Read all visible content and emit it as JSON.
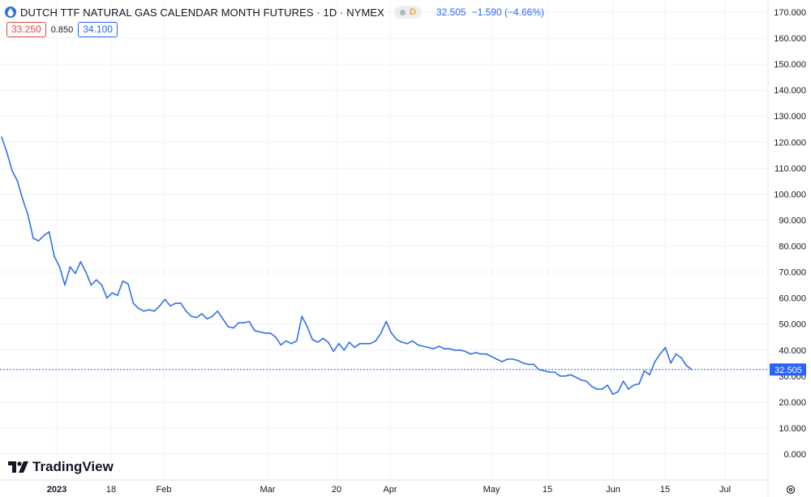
{
  "header": {
    "title": "DUTCH TTF NATURAL GAS CALENDAR MONTH FUTURES · 1D · NYMEX",
    "interval_badge": "D",
    "last_price": "32.505",
    "change": "−1.590 (−4.66%)"
  },
  "quotes": {
    "bid": "33.250",
    "spread": "0.850",
    "ask": "34.100"
  },
  "brand": {
    "name": "TradingView"
  },
  "price_label": "32.505",
  "colors": {
    "line": "#3370e8",
    "accent": "#2962ff",
    "bid": "#e0474a",
    "grid": "#f0f3fa"
  },
  "chart_data": {
    "type": "line",
    "title": "DUTCH TTF NATURAL GAS CALENDAR MONTH FUTURES · 1D · NYMEX",
    "ylim": [
      -5,
      175
    ],
    "y_ticks": [
      "170.000",
      "160.000",
      "150.000",
      "140.000",
      "130.000",
      "120.000",
      "110.000",
      "100.000",
      "90.000",
      "80.000",
      "70.000",
      "60.000",
      "50.000",
      "40.000",
      "30.000",
      "20.000",
      "10.000",
      "0.000"
    ],
    "x_ticks": [
      "2023",
      "18",
      "Feb",
      "Mar",
      "20",
      "Apr",
      "May",
      "15",
      "Jun",
      "15",
      "Jul"
    ],
    "last_value": 32.505,
    "series": [
      {
        "values": [
          122,
          116,
          109,
          105,
          98,
          92,
          83,
          82,
          84,
          85.5,
          76,
          72,
          65,
          72,
          69.5,
          74,
          70,
          65,
          67,
          65,
          60,
          62,
          61,
          66.5,
          65.5,
          58,
          56,
          55,
          55.5,
          55,
          57,
          59.5,
          57,
          58,
          58,
          55,
          53,
          52.5,
          54,
          52,
          53,
          55,
          52,
          49,
          48.5,
          50.5,
          50.5,
          51,
          47.5,
          47,
          46.5,
          46.5,
          45,
          42,
          43.5,
          42.5,
          43.5,
          53,
          49,
          44,
          43,
          44.5,
          43,
          39.5,
          42.5,
          40,
          43,
          41,
          42.5,
          42.5,
          42.5,
          43.5,
          46.5,
          51,
          46.5,
          44,
          43,
          42.5,
          43.5,
          42,
          41.5,
          41,
          40.5,
          41.5,
          40.5,
          40.5,
          40,
          40,
          39.5,
          38.5,
          39,
          38.5,
          38.5,
          37.5,
          36.5,
          35.5,
          36.5,
          36.5,
          36,
          35,
          34.5,
          34.5,
          32.5,
          32,
          31.5,
          31.5,
          30,
          30,
          30.5,
          29.5,
          28.5,
          28,
          26,
          25,
          25,
          26.5,
          23,
          24,
          28,
          25,
          26.5,
          27,
          32,
          30.5,
          35.5,
          38.5,
          41,
          35,
          38.5,
          37,
          34,
          32.505
        ]
      }
    ]
  }
}
